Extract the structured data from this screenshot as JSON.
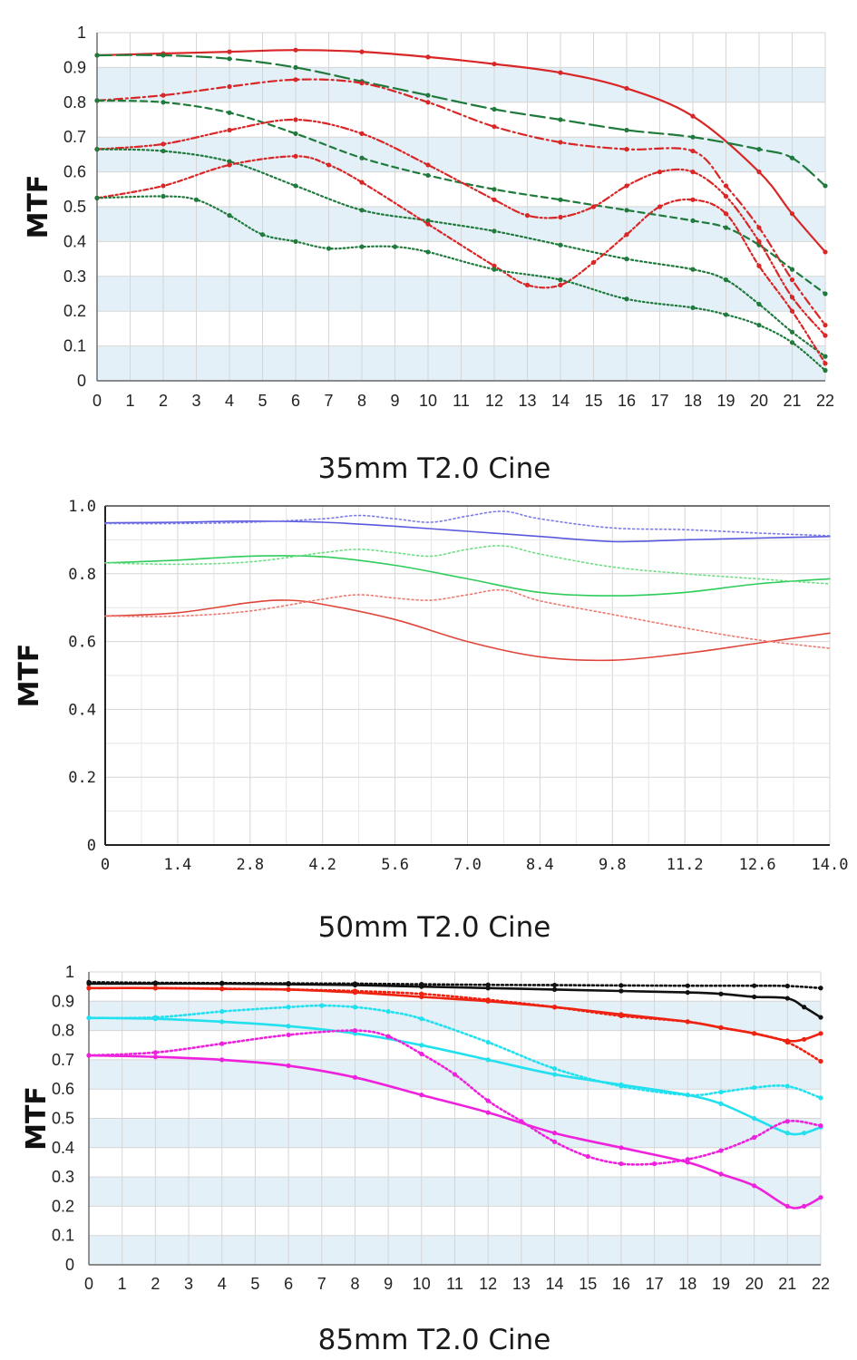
{
  "chart_data": [
    {
      "type": "line",
      "title": "35mm T2.0 Cine",
      "ylabel": "MTF",
      "xlim": [
        0,
        22
      ],
      "ylim": [
        0,
        1
      ],
      "x_ticks": [
        "0",
        "1",
        "2",
        "3",
        "4",
        "5",
        "6",
        "7",
        "8",
        "9",
        "10",
        "11",
        "12",
        "13",
        "14",
        "15",
        "16",
        "17",
        "18",
        "19",
        "20",
        "21",
        "22"
      ],
      "y_ticks": [
        "0",
        "0.1",
        "0.2",
        "0.3",
        "0.4",
        "0.5",
        "0.6",
        "0.7",
        "0.8",
        "0.9",
        "1"
      ],
      "grid": true,
      "banded_background": true,
      "colors": {
        "red": "#d92626",
        "green": "#1f7a3c",
        "band": "#e3f0f8"
      },
      "series": [
        {
          "color": "#d92626",
          "dash": "solid",
          "x": [
            0,
            2,
            4,
            6,
            8,
            10,
            12,
            14,
            16,
            18,
            20,
            21,
            22
          ],
          "y": [
            0.935,
            0.94,
            0.945,
            0.95,
            0.945,
            0.93,
            0.91,
            0.885,
            0.84,
            0.76,
            0.6,
            0.48,
            0.37
          ]
        },
        {
          "color": "#1f7a3c",
          "dash": "long-dash",
          "x": [
            0,
            2,
            4,
            6,
            8,
            10,
            12,
            14,
            16,
            18,
            20,
            21,
            22
          ],
          "y": [
            0.935,
            0.935,
            0.925,
            0.9,
            0.86,
            0.82,
            0.78,
            0.75,
            0.72,
            0.7,
            0.665,
            0.64,
            0.56
          ]
        },
        {
          "color": "#d92626",
          "dash": "dash-dot",
          "x": [
            0,
            2,
            4,
            6,
            8,
            10,
            12,
            14,
            16,
            18,
            19,
            20,
            21,
            22
          ],
          "y": [
            0.805,
            0.82,
            0.845,
            0.865,
            0.855,
            0.8,
            0.73,
            0.685,
            0.665,
            0.66,
            0.56,
            0.44,
            0.29,
            0.16
          ]
        },
        {
          "color": "#1f7a3c",
          "dash": "dashed",
          "x": [
            0,
            2,
            4,
            6,
            8,
            10,
            12,
            14,
            16,
            18,
            19,
            20,
            21,
            22
          ],
          "y": [
            0.805,
            0.8,
            0.77,
            0.71,
            0.64,
            0.59,
            0.55,
            0.52,
            0.49,
            0.46,
            0.44,
            0.39,
            0.32,
            0.25
          ]
        },
        {
          "color": "#d92626",
          "dash": "dash-dot-dot",
          "x": [
            0,
            2,
            4,
            6,
            8,
            10,
            12,
            13,
            14,
            15,
            16,
            17,
            18,
            19,
            20,
            21,
            22
          ],
          "y": [
            0.665,
            0.68,
            0.72,
            0.75,
            0.71,
            0.62,
            0.52,
            0.475,
            0.47,
            0.5,
            0.56,
            0.6,
            0.6,
            0.53,
            0.4,
            0.24,
            0.13
          ]
        },
        {
          "color": "#1f7a3c",
          "dash": "dotted",
          "x": [
            0,
            2,
            4,
            6,
            8,
            10,
            12,
            14,
            16,
            18,
            19,
            20,
            21,
            22
          ],
          "y": [
            0.665,
            0.66,
            0.63,
            0.56,
            0.49,
            0.46,
            0.43,
            0.39,
            0.35,
            0.32,
            0.29,
            0.22,
            0.14,
            0.07
          ]
        },
        {
          "color": "#d92626",
          "dash": "dash-dot-dense",
          "x": [
            0,
            2,
            4,
            6,
            7,
            8,
            10,
            12,
            13,
            14,
            15,
            16,
            17,
            18,
            19,
            20,
            21,
            22
          ],
          "y": [
            0.525,
            0.56,
            0.62,
            0.645,
            0.62,
            0.57,
            0.45,
            0.33,
            0.275,
            0.275,
            0.34,
            0.42,
            0.5,
            0.52,
            0.48,
            0.33,
            0.2,
            0.05
          ]
        },
        {
          "color": "#1f7a3c",
          "dash": "fine-dotted",
          "x": [
            0,
            2,
            3,
            4,
            5,
            6,
            7,
            8,
            9,
            10,
            12,
            14,
            16,
            18,
            19,
            20,
            21,
            22
          ],
          "y": [
            0.525,
            0.53,
            0.52,
            0.475,
            0.42,
            0.4,
            0.38,
            0.385,
            0.385,
            0.37,
            0.32,
            0.29,
            0.235,
            0.21,
            0.19,
            0.16,
            0.11,
            0.03
          ]
        }
      ]
    },
    {
      "type": "line",
      "title": "50mm T2.0 Cine",
      "ylabel": "MTF",
      "xlim": [
        0,
        14
      ],
      "ylim": [
        0,
        1
      ],
      "x_ticks": [
        "0",
        "1.4",
        "2.8",
        "4.2",
        "5.6",
        "7.0",
        "8.4",
        "9.8",
        "11.2",
        "12.6",
        "14.0"
      ],
      "y_ticks": [
        "0",
        "0.2",
        "0.4",
        "0.6",
        "0.8",
        "1.0"
      ],
      "grid": true,
      "colors": {
        "blue": "#5959dd",
        "green": "#2ecc5a",
        "red": "#e0453a"
      },
      "series": [
        {
          "color": "#5959dd",
          "dash": "solid",
          "x": [
            0,
            1.4,
            2.8,
            4.2,
            5.6,
            7.0,
            8.4,
            9.8,
            11.2,
            12.6,
            14.0
          ],
          "y": [
            0.95,
            0.952,
            0.955,
            0.952,
            0.94,
            0.925,
            0.91,
            0.895,
            0.9,
            0.905,
            0.91
          ]
        },
        {
          "color": "#7b7be8",
          "dash": "dotted",
          "x": [
            0,
            1.4,
            2.8,
            4.2,
            4.9,
            5.6,
            6.3,
            7.0,
            7.7,
            8.4,
            9.8,
            11.2,
            12.6,
            14.0
          ],
          "y": [
            0.948,
            0.948,
            0.952,
            0.962,
            0.972,
            0.962,
            0.952,
            0.97,
            0.984,
            0.962,
            0.935,
            0.93,
            0.92,
            0.912
          ]
        },
        {
          "color": "#2ecc5a",
          "dash": "solid",
          "x": [
            0,
            1.4,
            2.8,
            4.2,
            5.6,
            7.0,
            8.4,
            9.8,
            11.2,
            12.6,
            14.0
          ],
          "y": [
            0.832,
            0.84,
            0.852,
            0.85,
            0.825,
            0.785,
            0.745,
            0.735,
            0.745,
            0.77,
            0.785
          ]
        },
        {
          "color": "#6fdd85",
          "dash": "dotted",
          "x": [
            0,
            1.4,
            2.8,
            4.2,
            4.9,
            5.6,
            6.3,
            7.0,
            7.7,
            8.4,
            9.8,
            11.2,
            12.6,
            14.0
          ],
          "y": [
            0.832,
            0.828,
            0.835,
            0.862,
            0.872,
            0.862,
            0.852,
            0.872,
            0.882,
            0.858,
            0.82,
            0.8,
            0.785,
            0.77
          ]
        },
        {
          "color": "#e0453a",
          "dash": "solid",
          "x": [
            0,
            1.4,
            2.8,
            3.5,
            4.2,
            5.6,
            7.0,
            8.4,
            9.8,
            11.2,
            12.6,
            14.0
          ],
          "y": [
            0.675,
            0.685,
            0.715,
            0.722,
            0.71,
            0.665,
            0.6,
            0.555,
            0.545,
            0.565,
            0.595,
            0.625
          ]
        },
        {
          "color": "#ec7a70",
          "dash": "dotted",
          "x": [
            0,
            1.4,
            2.8,
            4.2,
            4.9,
            5.6,
            6.3,
            7.0,
            7.7,
            8.4,
            9.8,
            11.2,
            12.6,
            14.0
          ],
          "y": [
            0.675,
            0.675,
            0.69,
            0.725,
            0.738,
            0.728,
            0.722,
            0.738,
            0.752,
            0.72,
            0.68,
            0.64,
            0.605,
            0.58
          ]
        }
      ]
    },
    {
      "type": "line",
      "title": "85mm T2.0 Cine",
      "ylabel": "MTF",
      "xlim": [
        0,
        22
      ],
      "ylim": [
        0,
        1
      ],
      "x_ticks": [
        "0",
        "1",
        "2",
        "3",
        "4",
        "5",
        "6",
        "7",
        "8",
        "9",
        "10",
        "11",
        "12",
        "13",
        "14",
        "15",
        "16",
        "17",
        "18",
        "19",
        "20",
        "21",
        "22"
      ],
      "y_ticks": [
        "0",
        "0.1",
        "0.2",
        "0.3",
        "0.4",
        "0.5",
        "0.6",
        "0.7",
        "0.8",
        "0.9",
        "1"
      ],
      "grid": true,
      "banded_background": true,
      "colors": {
        "black": "#111111",
        "red": "#ee2211",
        "cyan": "#22e0ee",
        "magenta": "#ee22dd",
        "band": "#e3f0f8"
      },
      "series": [
        {
          "color": "#111111",
          "dash": "dotted",
          "x": [
            0,
            2,
            4,
            6,
            8,
            10,
            12,
            14,
            16,
            18,
            20,
            21,
            22
          ],
          "y": [
            0.965,
            0.963,
            0.962,
            0.961,
            0.96,
            0.958,
            0.956,
            0.955,
            0.954,
            0.953,
            0.953,
            0.952,
            0.945
          ]
        },
        {
          "color": "#111111",
          "dash": "solid",
          "x": [
            0,
            2,
            4,
            6,
            8,
            10,
            12,
            14,
            16,
            18,
            19,
            20,
            21,
            21.5,
            22
          ],
          "y": [
            0.96,
            0.96,
            0.96,
            0.958,
            0.955,
            0.95,
            0.945,
            0.94,
            0.935,
            0.93,
            0.925,
            0.915,
            0.91,
            0.88,
            0.845
          ]
        },
        {
          "color": "#ee2211",
          "dash": "solid",
          "x": [
            0,
            2,
            4,
            6,
            8,
            10,
            12,
            14,
            16,
            18,
            19,
            20,
            21,
            21.5,
            22
          ],
          "y": [
            0.945,
            0.945,
            0.942,
            0.94,
            0.93,
            0.915,
            0.9,
            0.88,
            0.855,
            0.83,
            0.81,
            0.79,
            0.765,
            0.77,
            0.79
          ]
        },
        {
          "color": "#ee2211",
          "dash": "dotted",
          "x": [
            0,
            2,
            4,
            6,
            8,
            10,
            12,
            14,
            16,
            18,
            19,
            20,
            21,
            22
          ],
          "y": [
            0.945,
            0.945,
            0.943,
            0.94,
            0.935,
            0.925,
            0.905,
            0.88,
            0.85,
            0.83,
            0.81,
            0.79,
            0.76,
            0.695
          ]
        },
        {
          "color": "#22e0ee",
          "dash": "dotted",
          "x": [
            0,
            2,
            4,
            6,
            7,
            8,
            9,
            10,
            12,
            14,
            16,
            18,
            19,
            20,
            21,
            22
          ],
          "y": [
            0.843,
            0.845,
            0.865,
            0.88,
            0.885,
            0.88,
            0.865,
            0.84,
            0.76,
            0.67,
            0.61,
            0.58,
            0.59,
            0.605,
            0.61,
            0.57
          ]
        },
        {
          "color": "#22e0ee",
          "dash": "solid",
          "x": [
            0,
            2,
            4,
            6,
            8,
            10,
            12,
            14,
            16,
            18,
            19,
            20,
            21,
            21.5,
            22
          ],
          "y": [
            0.843,
            0.84,
            0.83,
            0.815,
            0.79,
            0.75,
            0.7,
            0.65,
            0.615,
            0.58,
            0.55,
            0.5,
            0.45,
            0.45,
            0.47
          ]
        },
        {
          "color": "#ee22dd",
          "dash": "dotted",
          "x": [
            0,
            2,
            4,
            6,
            8,
            9,
            10,
            11,
            12,
            13,
            14,
            15,
            16,
            17,
            18,
            19,
            20,
            21,
            22
          ],
          "y": [
            0.715,
            0.725,
            0.755,
            0.785,
            0.8,
            0.78,
            0.72,
            0.65,
            0.56,
            0.49,
            0.42,
            0.37,
            0.345,
            0.345,
            0.36,
            0.39,
            0.435,
            0.49,
            0.475
          ]
        },
        {
          "color": "#ee22dd",
          "dash": "solid",
          "x": [
            0,
            2,
            4,
            6,
            8,
            10,
            12,
            14,
            16,
            18,
            19,
            20,
            21,
            21.5,
            22
          ],
          "y": [
            0.715,
            0.71,
            0.7,
            0.68,
            0.64,
            0.58,
            0.52,
            0.45,
            0.4,
            0.35,
            0.31,
            0.27,
            0.2,
            0.2,
            0.23
          ]
        }
      ]
    }
  ]
}
